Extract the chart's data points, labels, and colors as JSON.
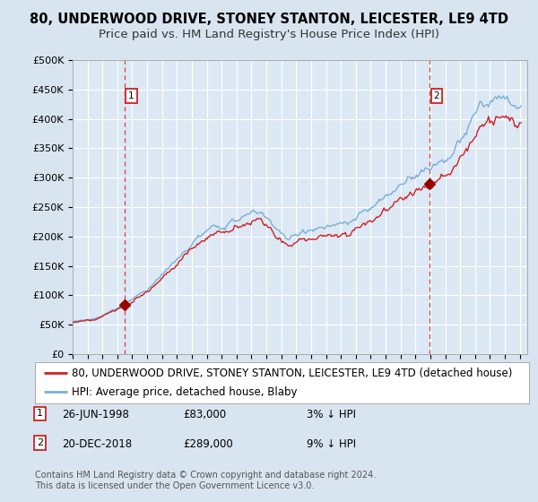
{
  "title1": "80, UNDERWOOD DRIVE, STONEY STANTON, LEICESTER, LE9 4TD",
  "title2": "Price paid vs. HM Land Registry's House Price Index (HPI)",
  "ylim": [
    0,
    500000
  ],
  "yticks": [
    0,
    50000,
    100000,
    150000,
    200000,
    250000,
    300000,
    350000,
    400000,
    450000,
    500000
  ],
  "ytick_labels": [
    "£0",
    "£50K",
    "£100K",
    "£150K",
    "£200K",
    "£250K",
    "£300K",
    "£350K",
    "£400K",
    "£450K",
    "£500K"
  ],
  "xlim_start": 1995.0,
  "xlim_end": 2025.5,
  "sale1_year": 1998.48,
  "sale1_price": 83000,
  "sale2_year": 2018.97,
  "sale2_price": 289000,
  "sale1_date": "26-JUN-1998",
  "sale1_amount": "£83,000",
  "sale1_hpi": "3% ↓ HPI",
  "sale2_date": "20-DEC-2018",
  "sale2_amount": "£289,000",
  "sale2_hpi": "9% ↓ HPI",
  "hpi_line_color": "#7aafd4",
  "price_line_color": "#cc2222",
  "sale_marker_color": "#990000",
  "background_color": "#d8e4ef",
  "plot_bg_color": "#dde8f5",
  "grid_color": "#ffffff",
  "legend_line1": "80, UNDERWOOD DRIVE, STONEY STANTON, LEICESTER, LE9 4TD (detached house)",
  "legend_line2": "HPI: Average price, detached house, Blaby",
  "footer": "Contains HM Land Registry data © Crown copyright and database right 2024.\nThis data is licensed under the Open Government Licence v3.0.",
  "title_fontsize": 10.5,
  "subtitle_fontsize": 9.5,
  "tick_fontsize": 8,
  "legend_fontsize": 8.5,
  "note_fontsize": 8
}
